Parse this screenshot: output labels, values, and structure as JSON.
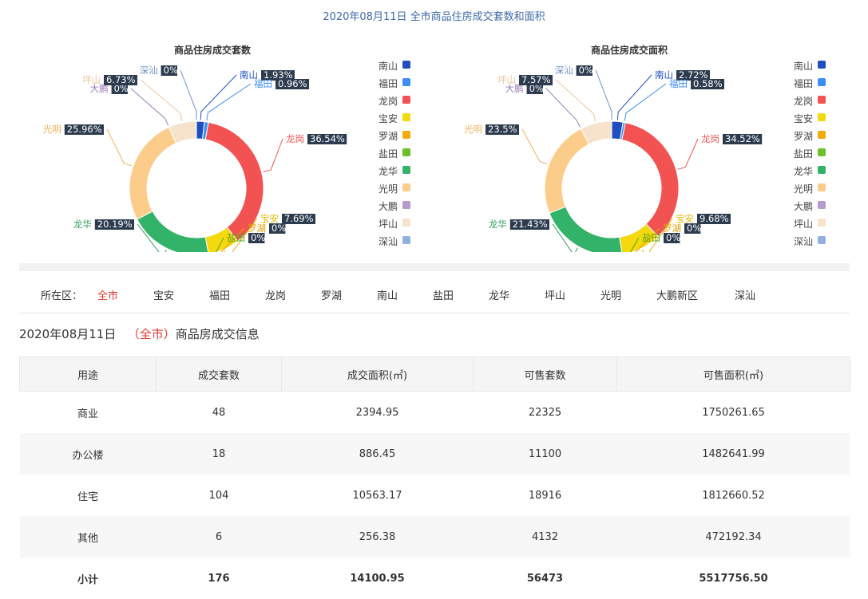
{
  "page": {
    "title": "2020年08月11日 全市商品住房成交套数和面积"
  },
  "chart_data": [
    {
      "type": "pie",
      "title": "商品住房成交套数",
      "categories": [
        "南山",
        "福田",
        "龙岗",
        "宝安",
        "罗湖",
        "盐田",
        "龙华",
        "光明",
        "大鹏",
        "坪山",
        "深汕"
      ],
      "values": [
        1.93,
        0.96,
        36.54,
        7.69,
        0,
        0,
        20.19,
        25.96,
        0,
        6.73,
        0
      ],
      "value_labels": [
        "1.93%",
        "0.96%",
        "36.54%",
        "7.69%",
        "0%",
        "0%",
        "20.19%",
        "25.96%",
        "0%",
        "6.73%",
        "0%"
      ],
      "legend_position": "right"
    },
    {
      "type": "pie",
      "title": "商品住房成交面积",
      "categories": [
        "南山",
        "福田",
        "龙岗",
        "宝安",
        "罗湖",
        "盐田",
        "龙华",
        "光明",
        "大鹏",
        "坪山",
        "深汕"
      ],
      "values": [
        2.72,
        0.58,
        34.52,
        9.68,
        0,
        0,
        21.43,
        23.5,
        0,
        7.57,
        0
      ],
      "value_labels": [
        "2.72%",
        "0.58%",
        "34.52%",
        "9.68%",
        "0%",
        "0%",
        "21.43%",
        "23.5%",
        "0%",
        "7.57%",
        "0%"
      ],
      "legend_position": "right"
    },
    {
      "type": "table",
      "columns": [
        "用途",
        "成交套数",
        "成交面积(㎡)",
        "可售套数",
        "可售面积(㎡)"
      ],
      "rows": [
        [
          "商业",
          "48",
          "2394.95",
          "22325",
          "1750261.65"
        ],
        [
          "办公楼",
          "18",
          "886.45",
          "11100",
          "1482641.99"
        ],
        [
          "住宅",
          "104",
          "10563.17",
          "18916",
          "1812660.52"
        ],
        [
          "其他",
          "6",
          "256.38",
          "4132",
          "472192.34"
        ]
      ],
      "total": [
        "小计",
        "176",
        "14100.95",
        "56473",
        "5517756.50"
      ]
    }
  ],
  "colors": [
    "#1f4fbf",
    "#3d8ef0",
    "#f25252",
    "#f5d90f",
    "#f0ac0c",
    "#6cc12b",
    "#33b26a",
    "#fccd8a",
    "#b59bcb",
    "#f7e3cc",
    "#8fb0e0"
  ],
  "filter": {
    "label": "所在区：",
    "items": [
      "全市",
      "宝安",
      "福田",
      "龙岗",
      "罗湖",
      "南山",
      "盐田",
      "龙华",
      "坪山",
      "光明",
      "大鹏新区",
      "深汕"
    ],
    "active_index": 0
  },
  "info": {
    "date": "2020年08月11日",
    "open": "（",
    "selected": "全市",
    "close": "）",
    "suffix": "商品房成交信息"
  }
}
